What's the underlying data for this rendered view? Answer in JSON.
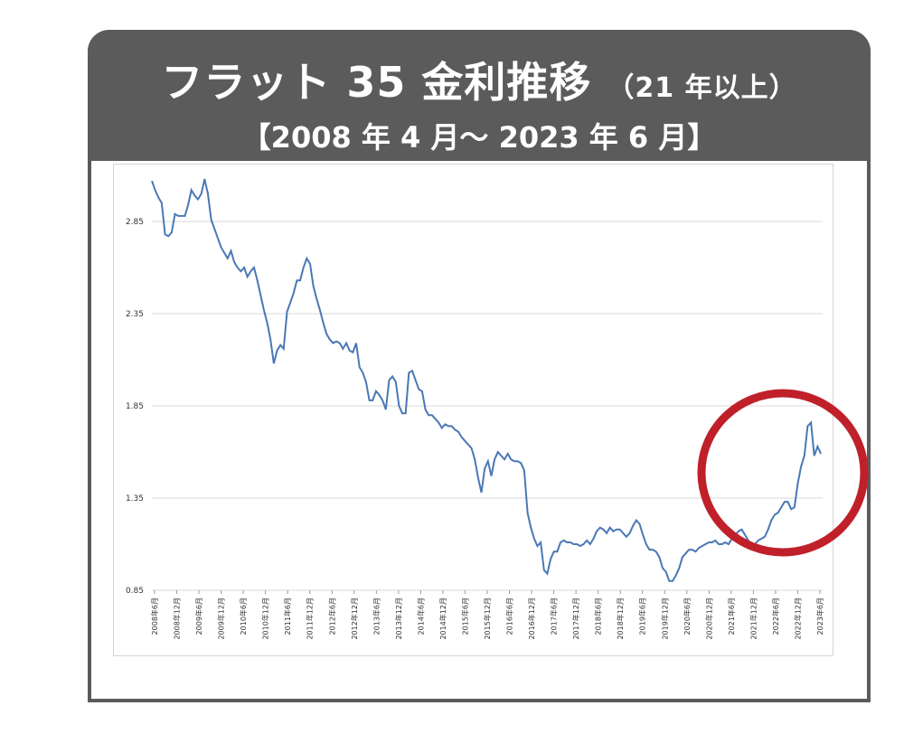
{
  "header": {
    "title_main": "フラット 35 金利推移",
    "title_sub": "（21 年以上）",
    "subtitle": "【2008 年 4 月～ 2023 年 6 月】"
  },
  "colors": {
    "header_bg": "#5b5b5b",
    "line": "#4a78b5",
    "highlight_circle": "#c0202a",
    "grid": "#d9d9d9"
  },
  "chart_data": {
    "type": "line",
    "title": "",
    "xlabel": "",
    "ylabel": "",
    "ylim": [
      0.85,
      3.1
    ],
    "yticks": [
      0.85,
      1.35,
      1.85,
      2.35,
      2.85
    ],
    "ytick_labels": [
      "0.85",
      "1.35",
      "1.85",
      "2.35",
      "2.85"
    ],
    "grid": true,
    "x_tick_labels": [
      "2008年6月",
      "2008年12月",
      "2009年6月",
      "2009年12月",
      "2010年6月",
      "2010年12月",
      "2011年6月",
      "2011年12月",
      "2012年6月",
      "2012年12月",
      "2013年6月",
      "2013年12月",
      "2014年6月",
      "2014年12月",
      "2015年6月",
      "2015年12月",
      "2016年6月",
      "2016年12月",
      "2017年6月",
      "2017年12月",
      "2018年6月",
      "2018年12月",
      "2019年6月",
      "2019年12月",
      "2020年6月",
      "2020年12月",
      "2021年6月",
      "2021年12月",
      "2022年6月",
      "2022年12月",
      "2023年6月"
    ],
    "series": [
      {
        "values": [
          3.07,
          3.02,
          2.98,
          2.95,
          2.78,
          2.77,
          2.79,
          2.89,
          2.88,
          2.88,
          2.88,
          2.94,
          3.02,
          2.99,
          2.97,
          3.0,
          3.08,
          3.0,
          2.86,
          2.81,
          2.76,
          2.71,
          2.68,
          2.65,
          2.69,
          2.63,
          2.6,
          2.58,
          2.6,
          2.55,
          2.58,
          2.6,
          2.53,
          2.45,
          2.37,
          2.3,
          2.21,
          2.08,
          2.15,
          2.18,
          2.16,
          2.36,
          2.41,
          2.46,
          2.53,
          2.53,
          2.6,
          2.65,
          2.62,
          2.5,
          2.43,
          2.37,
          2.3,
          2.24,
          2.21,
          2.19,
          2.2,
          2.19,
          2.16,
          2.19,
          2.15,
          2.14,
          2.19,
          2.06,
          2.03,
          1.98,
          1.88,
          1.88,
          1.93,
          1.91,
          1.88,
          1.83,
          1.99,
          2.01,
          1.98,
          1.85,
          1.81,
          1.81,
          2.03,
          2.04,
          1.99,
          1.94,
          1.93,
          1.83,
          1.8,
          1.8,
          1.78,
          1.76,
          1.73,
          1.75,
          1.74,
          1.74,
          1.72,
          1.71,
          1.68,
          1.66,
          1.64,
          1.62,
          1.56,
          1.46,
          1.38,
          1.51,
          1.55,
          1.47,
          1.56,
          1.6,
          1.58,
          1.56,
          1.59,
          1.56,
          1.55,
          1.55,
          1.54,
          1.5,
          1.27,
          1.19,
          1.13,
          1.09,
          1.11,
          0.96,
          0.94,
          1.02,
          1.06,
          1.06,
          1.11,
          1.12,
          1.11,
          1.11,
          1.1,
          1.1,
          1.09,
          1.1,
          1.12,
          1.1,
          1.13,
          1.17,
          1.19,
          1.18,
          1.16,
          1.19,
          1.17,
          1.18,
          1.18,
          1.16,
          1.14,
          1.16,
          1.2,
          1.23,
          1.21,
          1.15,
          1.1,
          1.07,
          1.07,
          1.06,
          1.03,
          0.97,
          0.95,
          0.9,
          0.9,
          0.93,
          0.97,
          1.03,
          1.05,
          1.07,
          1.07,
          1.06,
          1.08,
          1.09,
          1.1,
          1.11,
          1.11,
          1.12,
          1.1,
          1.1,
          1.11,
          1.1,
          1.13,
          1.15,
          1.17,
          1.18,
          1.15,
          1.12,
          1.1,
          1.1,
          1.12,
          1.13,
          1.14,
          1.18,
          1.23,
          1.26,
          1.27,
          1.3,
          1.33,
          1.33,
          1.29,
          1.3,
          1.43,
          1.52,
          1.58,
          1.74,
          1.76,
          1.58,
          1.63,
          1.59
        ]
      }
    ]
  }
}
